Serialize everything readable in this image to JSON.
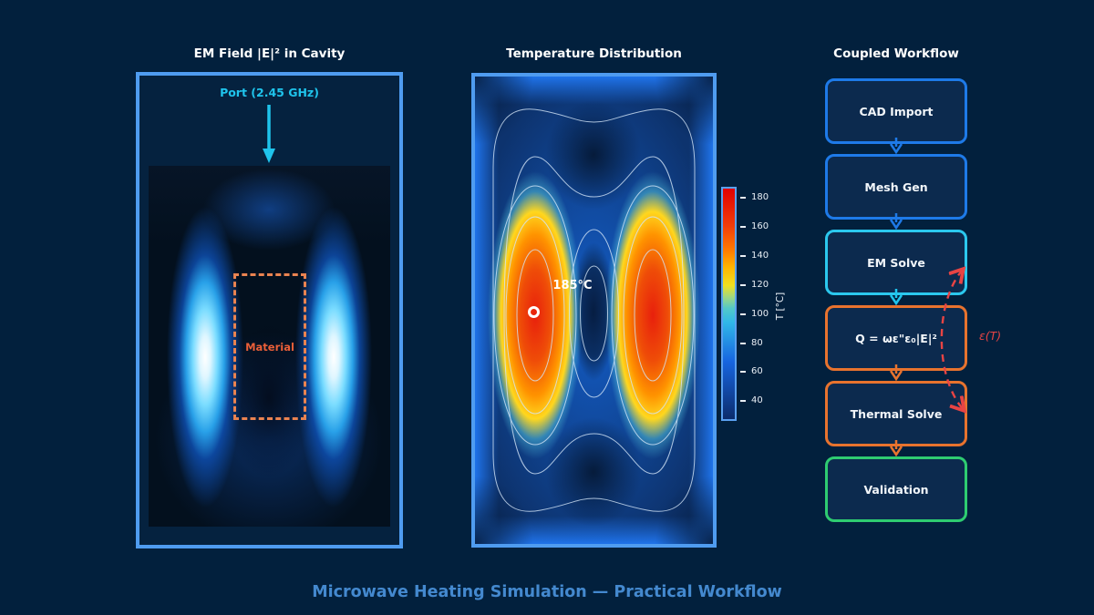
{
  "colors": {
    "background": "#02203d",
    "panel_border": "#4f9cf0",
    "cyan": "#1fc4ec",
    "blue": "#1e7ae8",
    "orange": "#e8732e",
    "green": "#2ecc71",
    "feedback_red": "#e84444",
    "footer_blue": "#4489cf",
    "material_orange": "#ea5f38"
  },
  "em_panel": {
    "title": "EM Field |E|² in Cavity",
    "port_label": "Port (2.45 GHz)",
    "material_label": "Material"
  },
  "temp_panel": {
    "title": "Temperature Distribution",
    "hotspot_annotation": "185°C",
    "colorbar": {
      "label": "T [°C]",
      "ticks": [
        "180",
        "160",
        "140",
        "120",
        "100",
        "80",
        "60",
        "40"
      ]
    }
  },
  "workflow": {
    "title": "Coupled Workflow",
    "steps": [
      {
        "label": "CAD Import",
        "border_color": "#1e7ae8"
      },
      {
        "label": "Mesh Gen",
        "border_color": "#1e7ae8"
      },
      {
        "label": "EM Solve",
        "border_color": "#2bc8ee"
      },
      {
        "label": "Q = ωε\"ε₀|E|²",
        "border_color": "#e8732e"
      },
      {
        "label": "Thermal Solve",
        "border_color": "#e8732e"
      },
      {
        "label": "Validation",
        "border_color": "#2ecc71"
      }
    ],
    "arrow_colors": [
      "#1e7ae8",
      "#1e7ae8",
      "#1fc4ec",
      "#e8732e",
      "#e8732e"
    ],
    "feedback_label": "ε(T)"
  },
  "footer_title": "Microwave Heating Simulation — Practical Workflow",
  "chart_data": [
    {
      "type": "heatmap",
      "title": "Temperature Distribution",
      "colormap": "jet",
      "colorbar_label": "T [°C]",
      "colorbar_ticks": [
        40,
        60,
        80,
        100,
        120,
        140,
        160,
        180
      ],
      "peak_annotation": {
        "text": "185°C",
        "value_c": 185
      },
      "legend_position": "right",
      "description": "Two tall vertical hot lobes (~185°C peak) symmetric about the cavity centerline, cool dark-blue core between them, walls ~60-80°C, light contour lines at several temperature levels."
    },
    {
      "type": "heatmap",
      "title": "EM Field |E|² in Cavity",
      "annotations": [
        "Port (2.45 GHz)",
        "Material"
      ],
      "description": "Standing-wave |E|² magnitude: two bright white-cyan vertical maxima flanking a dashed 'Material' region; excitation port arrow at 2.45 GHz enters from the top."
    },
    {
      "type": "flowchart",
      "title": "Coupled Workflow",
      "nodes": [
        "CAD Import",
        "Mesh Gen",
        "EM Solve",
        "Q = ωε\"ε₀|E|²",
        "Thermal Solve",
        "Validation"
      ],
      "edges": [
        [
          "CAD Import",
          "Mesh Gen"
        ],
        [
          "Mesh Gen",
          "EM Solve"
        ],
        [
          "EM Solve",
          "Q = ωε\"ε₀|E|²"
        ],
        [
          "Q = ωε\"ε₀|E|²",
          "Thermal Solve"
        ],
        [
          "Thermal Solve",
          "Validation"
        ]
      ],
      "feedback_edge": {
        "from": "Thermal Solve",
        "to": "EM Solve",
        "label": "ε(T)",
        "style": "dashed"
      }
    }
  ]
}
